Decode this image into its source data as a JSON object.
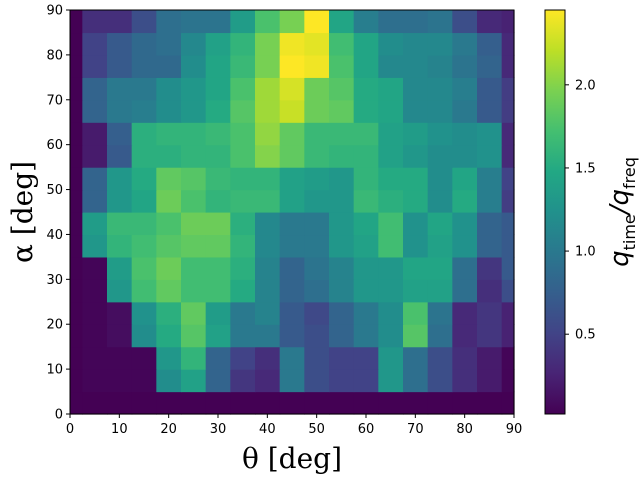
{
  "chart_data": {
    "type": "heatmap",
    "title": "",
    "xlabel": "θ [deg]",
    "ylabel": "α [deg]",
    "colorbar_label": "q_time/q_freq",
    "colormap": "viridis",
    "xlim": [
      0,
      90
    ],
    "ylim": [
      0,
      90
    ],
    "x_ticks": [
      0,
      10,
      20,
      30,
      40,
      50,
      60,
      70,
      80,
      90
    ],
    "y_ticks": [
      0,
      10,
      20,
      30,
      40,
      50,
      60,
      70,
      80,
      90
    ],
    "colorbar_ticks": [
      0.5,
      1.0,
      1.5,
      2.0
    ],
    "colorbar_tick_labels": [
      "0.5",
      "1.0",
      "1.5",
      "2.0"
    ],
    "vmin": 0.02,
    "vmax": 2.45,
    "x_edges": [
      0,
      2.5,
      7.5,
      12.5,
      17.5,
      22.5,
      27.5,
      32.5,
      37.5,
      42.5,
      47.5,
      52.5,
      57.5,
      62.5,
      67.5,
      72.5,
      77.5,
      82.5,
      87.5,
      90
    ],
    "y_edges": [
      0,
      5,
      10,
      15,
      20,
      25,
      30,
      35,
      40,
      45,
      50,
      55,
      60,
      65,
      70,
      75,
      80,
      85,
      90
    ],
    "values": [
      [
        0.02,
        0.02,
        0.02,
        0.02,
        0.02,
        0.02,
        0.02,
        0.02,
        0.02,
        0.02,
        0.02,
        0.02,
        0.02,
        0.02,
        0.02,
        0.02,
        0.02,
        0.02,
        0.02
      ],
      [
        0.02,
        0.05,
        0.05,
        0.05,
        1.2,
        1.4,
        0.8,
        0.4,
        0.3,
        1.0,
        0.6,
        0.5,
        0.5,
        1.3,
        0.9,
        0.6,
        0.35,
        0.2,
        0.05
      ],
      [
        0.02,
        0.05,
        0.05,
        0.05,
        1.3,
        1.6,
        0.8,
        0.5,
        0.35,
        1.0,
        0.6,
        0.5,
        0.5,
        1.3,
        0.9,
        0.6,
        0.35,
        0.2,
        0.05
      ],
      [
        0.02,
        0.05,
        0.1,
        1.2,
        1.5,
        1.8,
        1.4,
        1.0,
        1.0,
        0.7,
        0.6,
        0.8,
        1.0,
        1.2,
        1.8,
        0.9,
        0.3,
        0.4,
        0.25
      ],
      [
        0.02,
        0.05,
        0.1,
        1.25,
        1.55,
        1.85,
        1.35,
        1.0,
        1.1,
        0.7,
        0.55,
        0.8,
        1.0,
        1.2,
        1.75,
        0.95,
        0.3,
        0.4,
        0.25
      ],
      [
        0.02,
        0.05,
        1.3,
        1.7,
        1.85,
        1.7,
        1.7,
        1.5,
        1.1,
        0.8,
        0.9,
        1.1,
        1.3,
        1.3,
        1.4,
        1.4,
        0.9,
        0.35,
        0.6
      ],
      [
        0.02,
        0.05,
        1.35,
        1.75,
        1.9,
        1.7,
        1.7,
        1.55,
        1.1,
        0.8,
        0.95,
        1.1,
        1.3,
        1.3,
        1.45,
        1.45,
        0.9,
        0.4,
        0.7
      ],
      [
        0.02,
        1.3,
        1.6,
        1.7,
        1.8,
        1.85,
        1.85,
        1.6,
        1.15,
        1.0,
        1.0,
        1.3,
        1.4,
        1.7,
        1.25,
        1.4,
        1.25,
        0.8,
        0.7
      ],
      [
        0.02,
        1.35,
        1.65,
        1.65,
        1.75,
        1.9,
        1.9,
        1.55,
        1.15,
        1.0,
        1.0,
        1.3,
        1.45,
        1.7,
        1.25,
        1.45,
        1.25,
        0.8,
        0.7
      ],
      [
        0.02,
        0.8,
        1.3,
        1.45,
        1.9,
        1.75,
        1.6,
        1.65,
        1.65,
        1.4,
        1.3,
        1.3,
        1.65,
        1.55,
        1.5,
        1.2,
        1.5,
        1.05,
        0.45
      ],
      [
        0.02,
        0.8,
        1.3,
        1.5,
        1.85,
        1.8,
        1.65,
        1.6,
        1.6,
        1.4,
        1.35,
        1.3,
        1.6,
        1.5,
        1.5,
        1.2,
        1.45,
        1.05,
        0.5
      ],
      [
        0.02,
        0.2,
        0.7,
        1.55,
        1.55,
        1.6,
        1.6,
        1.75,
        2.0,
        1.85,
        1.65,
        1.6,
        1.6,
        1.4,
        1.3,
        1.2,
        1.2,
        1.25,
        0.3
      ],
      [
        0.02,
        0.2,
        0.75,
        1.55,
        1.6,
        1.6,
        1.65,
        1.75,
        2.05,
        1.85,
        1.65,
        1.65,
        1.65,
        1.4,
        1.35,
        1.25,
        1.2,
        1.25,
        0.3
      ],
      [
        0.02,
        0.8,
        1.0,
        1.05,
        1.2,
        1.3,
        1.5,
        1.8,
        2.1,
        2.25,
        1.9,
        1.85,
        1.5,
        1.45,
        1.15,
        1.15,
        1.0,
        0.7,
        0.45
      ],
      [
        0.02,
        0.8,
        1.0,
        1.0,
        1.2,
        1.3,
        1.45,
        1.75,
        2.1,
        2.3,
        1.9,
        1.8,
        1.5,
        1.45,
        1.15,
        1.15,
        1.05,
        0.7,
        0.45
      ],
      [
        0.02,
        0.5,
        0.7,
        0.85,
        0.85,
        1.2,
        1.45,
        1.65,
        1.95,
        2.45,
        2.4,
        1.75,
        1.45,
        1.15,
        1.15,
        1.1,
        0.95,
        0.8,
        0.3
      ],
      [
        0.02,
        0.5,
        0.7,
        0.85,
        0.9,
        1.15,
        1.4,
        1.6,
        1.95,
        2.4,
        2.35,
        1.7,
        1.45,
        1.2,
        1.15,
        1.15,
        1.0,
        0.75,
        0.3
      ],
      [
        0.02,
        0.35,
        0.35,
        0.6,
        0.9,
        0.95,
        0.95,
        1.35,
        1.75,
        1.95,
        2.45,
        1.45,
        1.05,
        0.9,
        0.9,
        0.95,
        0.6,
        0.3,
        0.25
      ]
    ]
  }
}
